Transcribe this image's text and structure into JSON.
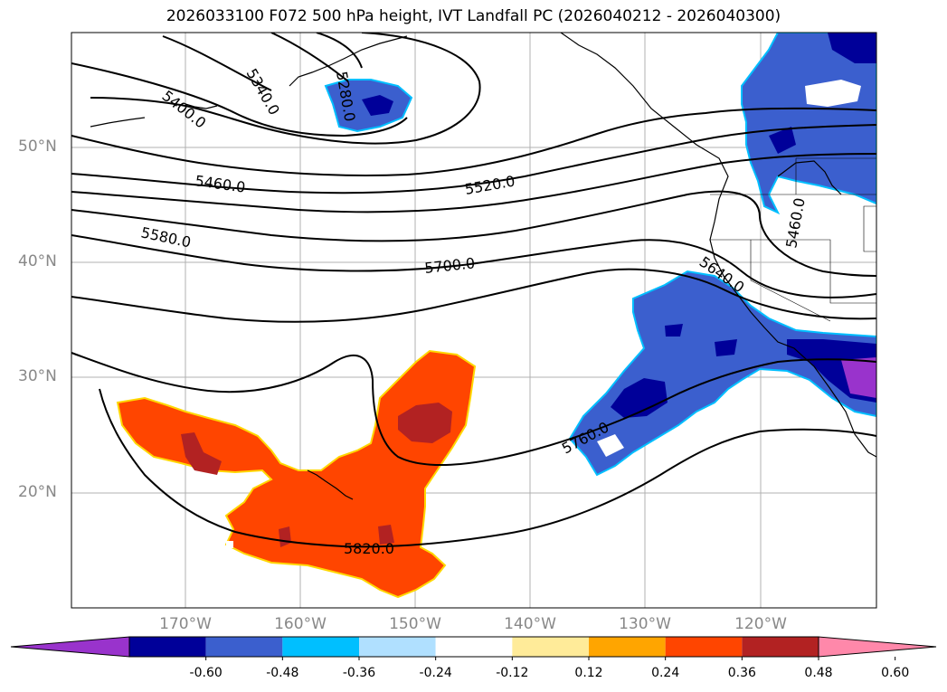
{
  "title": "2026033100 F072 500 hPa height, IVT Landfall PC (2026040212 - 2026040300)",
  "lat_labels": [
    "50°N",
    "40°N",
    "30°N",
    "20°N"
  ],
  "lon_labels": [
    "170°W",
    "160°W",
    "150°W",
    "140°W",
    "130°W",
    "120°W"
  ],
  "contour_labels": [
    "5340.0",
    "5280.0",
    "5400.0",
    "5460.0",
    "5520.0",
    "5580.0",
    "5700.0",
    "5640.0",
    "5460.0",
    "5760.0",
    "5820.0"
  ],
  "colorbar": {
    "ticks": [
      "-0.60",
      "-0.48",
      "-0.36",
      "-0.24",
      "-0.12",
      "0.12",
      "0.24",
      "0.36",
      "0.48",
      "0.60"
    ],
    "colors": [
      "#9933cc",
      "#000099",
      "#3b5fce",
      "#00bfff",
      "#b0e0ff",
      "#ffffff",
      "#ffeb99",
      "#ffa500",
      "#ff4500",
      "#b22222",
      "#ff88aa"
    ]
  },
  "colors": {
    "neg_strong": "#000099",
    "neg_mid": "#3b5fce",
    "neg_light": "#00bfff",
    "pos_mid": "#ff4500",
    "pos_strong": "#b22222",
    "purple": "#9933cc"
  }
}
